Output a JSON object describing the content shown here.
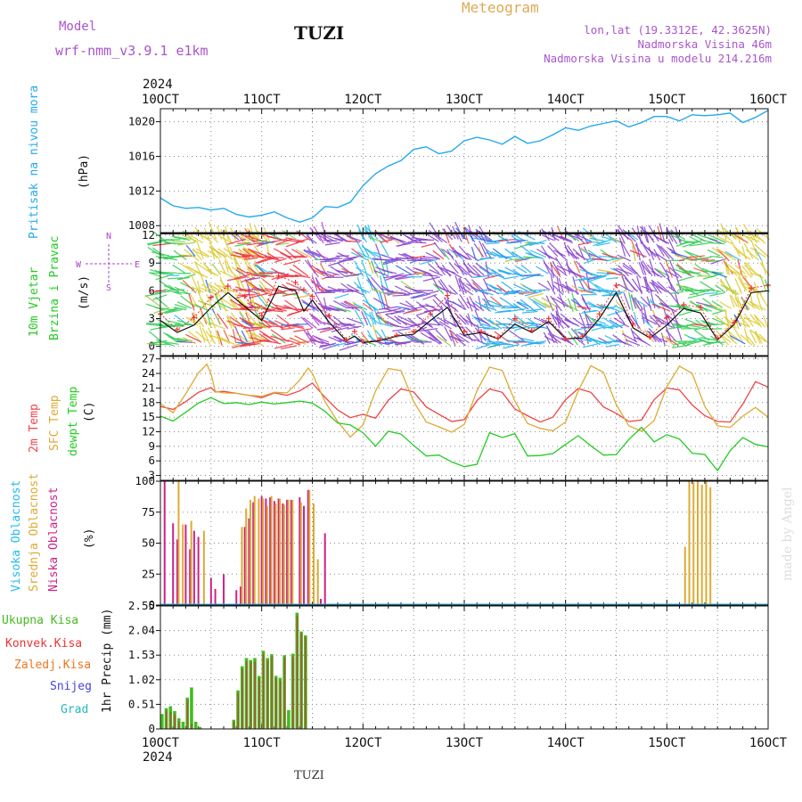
{
  "header": {
    "model_label": "Model",
    "model_name": "wrf-nmm_v3.9.1  e1km",
    "station": "TUZI",
    "product": "Meteogram",
    "lonlat": "lon,lat (19.3312E, 42.3625N)",
    "elevation": "Nadmorska Visina 46m",
    "model_elevation": "Nadmorska Visina u modelu 214.216m",
    "footer_station": "TUZI",
    "credit": "made by Angel",
    "year": "2024"
  },
  "time_axis": {
    "ticks": [
      "10OCT",
      "11OCT",
      "12OCT",
      "13OCT",
      "14OCT",
      "15OCT",
      "16OCT"
    ],
    "range_hours": [
      0,
      144
    ]
  },
  "colors": {
    "pressure": "#22aaee",
    "temp2m": "#ee4444",
    "sfc_temp": "#ddaa33",
    "dewpt": "#22cc22",
    "high_cloud": "#22bbee",
    "mid_cloud": "#ddaa33",
    "low_cloud": "#cc2288",
    "total_rain": "#44bb22",
    "conv_rain": "#ee3333",
    "freezing_rain": "#ee7722",
    "snow": "#4444dd",
    "hail": "#22bbbb",
    "wind_label": "#22cc22",
    "wind_dir": "#aa44cc"
  },
  "chart_data": [
    {
      "type": "line",
      "panel": "pressure",
      "ylabel": [
        "Pritisak na nivou mora",
        "(hPa)"
      ],
      "yticks": [
        1008,
        1012,
        1016,
        1020
      ],
      "ylim": [
        1007.2,
        1021.5
      ],
      "grid": true,
      "series": [
        {
          "color_key": "pressure",
          "x": [
            0,
            3,
            6,
            9,
            12,
            15,
            18,
            21,
            24,
            27,
            30,
            33,
            36,
            39,
            42,
            45,
            48,
            51,
            54,
            57,
            60,
            63,
            66,
            69,
            72,
            75,
            78,
            81,
            84,
            87,
            90,
            93,
            96,
            99,
            102,
            105,
            108,
            111,
            114,
            117,
            120,
            123,
            126,
            129,
            132,
            135,
            138,
            141,
            144
          ],
          "values": [
            1011.2,
            1010.3,
            1010.0,
            1010.1,
            1009.8,
            1010.0,
            1009.3,
            1009.0,
            1009.2,
            1009.6,
            1008.9,
            1008.4,
            1008.9,
            1010.2,
            1010.1,
            1010.7,
            1012.6,
            1014.0,
            1014.9,
            1015.5,
            1016.8,
            1017.1,
            1016.3,
            1016.6,
            1017.8,
            1018.2,
            1017.9,
            1017.4,
            1018.3,
            1017.5,
            1017.8,
            1018.5,
            1019.3,
            1019.0,
            1019.5,
            1019.8,
            1020.1,
            1019.4,
            1019.9,
            1020.6,
            1020.6,
            1020.1,
            1020.8,
            1020.7,
            1020.8,
            1021.0,
            1019.9,
            1020.5,
            1021.3
          ]
        }
      ]
    },
    {
      "type": "line",
      "panel": "wind",
      "ylabel": [
        "10m Vjetar",
        "Brzina i Pravac",
        "(m/s)"
      ],
      "compass": [
        "N",
        "S",
        "W",
        "E"
      ],
      "yticks": [
        0,
        3,
        6,
        9,
        12
      ],
      "ylim": [
        -1,
        12.2
      ],
      "grid": true,
      "series": [
        {
          "name": "speed",
          "x": [
            0,
            4,
            8,
            12,
            16,
            20,
            24,
            28,
            32,
            34,
            36,
            40,
            44,
            46,
            48,
            52,
            56,
            60,
            64,
            68,
            72,
            76,
            80,
            84,
            88,
            92,
            96,
            100,
            104,
            108,
            112,
            116,
            120,
            124,
            128,
            132,
            136,
            140,
            144
          ],
          "values": [
            2.8,
            1.5,
            2.3,
            4.2,
            5.8,
            4.3,
            2.8,
            6.5,
            6.0,
            3.8,
            5.0,
            2.6,
            0.6,
            1.1,
            0.4,
            0.6,
            1.1,
            1.3,
            2.8,
            4.2,
            1.2,
            1.5,
            0.8,
            2.4,
            1.5,
            2.7,
            0.8,
            0.9,
            3.0,
            5.8,
            2.0,
            0.9,
            2.3,
            4.1,
            3.6,
            0.7,
            2.4,
            5.8,
            6.0
          ]
        },
        {
          "name": "gust",
          "x": [
            0,
            4,
            8,
            12,
            16,
            20,
            24,
            28,
            32,
            34,
            36,
            40,
            44,
            46,
            48,
            52,
            56,
            60,
            64,
            68,
            72,
            76,
            80,
            84,
            88,
            92,
            96,
            100,
            104,
            108,
            112,
            116,
            120,
            124,
            128,
            132,
            136,
            140,
            144
          ],
          "values": [
            3.5,
            1.8,
            3.1,
            5.3,
            6.5,
            5.4,
            3.3,
            7.6,
            6.9,
            6.1,
            5.4,
            3.3,
            0.7,
            1.6,
            0.5,
            0.7,
            1.2,
            1.6,
            3.5,
            5.5,
            1.6,
            1.6,
            0.9,
            3.0,
            1.7,
            3.0,
            0.8,
            1.1,
            3.5,
            6.6,
            2.4,
            1.0,
            3.1,
            4.5,
            4.2,
            0.9,
            2.6,
            6.3,
            6.6
          ]
        }
      ]
    },
    {
      "type": "line",
      "panel": "temperature",
      "ylabel": [
        "2m Temp",
        "SFC Temp",
        "dewpt Temp",
        "(C)"
      ],
      "yticks": [
        3,
        6,
        9,
        12,
        15,
        18,
        21,
        24,
        27
      ],
      "ylim": [
        2,
        27.5
      ],
      "grid": true,
      "series": [
        {
          "name": "2m Temp",
          "color_key": "temp2m",
          "x": [
            0,
            3,
            6,
            9,
            12,
            13,
            15,
            18,
            21,
            24,
            27,
            30,
            33,
            36,
            39,
            42,
            45,
            48,
            51,
            54,
            57,
            60,
            63,
            66,
            69,
            72,
            75,
            78,
            81,
            84,
            87,
            90,
            93,
            96,
            99,
            102,
            105,
            108,
            111,
            114,
            117,
            120,
            123,
            126,
            129,
            132,
            135,
            138,
            141,
            144
          ],
          "values": [
            17.2,
            16.6,
            18.2,
            20.1,
            21.1,
            20.2,
            20.3,
            19.9,
            19.5,
            19.0,
            20.0,
            19.5,
            20.4,
            22.0,
            19.1,
            16.5,
            14.9,
            15.6,
            14.8,
            18.5,
            20.8,
            20.2,
            17.1,
            15.6,
            14.1,
            14.5,
            18.4,
            20.8,
            20.1,
            16.7,
            15.3,
            14.0,
            15.0,
            18.6,
            20.9,
            20.1,
            17.1,
            15.8,
            14.1,
            14.4,
            18.6,
            21.0,
            20.6,
            17.5,
            15.3,
            14.1,
            14.0,
            17.7,
            22.3,
            21.2
          ]
        },
        {
          "name": "SFC Temp",
          "color_key": "sfc_temp",
          "x": [
            0,
            3,
            6,
            9,
            11,
            12,
            13,
            15,
            18,
            21,
            24,
            27,
            30,
            33,
            35,
            36,
            39,
            42,
            45,
            48,
            51,
            54,
            57,
            60,
            63,
            66,
            69,
            72,
            75,
            78,
            81,
            84,
            87,
            90,
            93,
            96,
            99,
            102,
            105,
            108,
            111,
            114,
            117,
            120,
            123,
            126,
            129,
            132,
            135,
            138,
            141,
            144
          ],
          "values": [
            17.8,
            15.9,
            19.8,
            24.1,
            25.9,
            24.0,
            20.3,
            20.0,
            19.9,
            19.5,
            19.3,
            20.1,
            20.0,
            22.6,
            25.1,
            24.0,
            18.2,
            14.1,
            10.9,
            13.4,
            20.4,
            25.0,
            24.6,
            18.2,
            14.0,
            13.0,
            11.9,
            13.5,
            20.4,
            25.3,
            24.6,
            18.3,
            13.7,
            12.7,
            12.2,
            14.0,
            20.4,
            25.6,
            24.2,
            17.6,
            13.2,
            12.1,
            14.3,
            21.3,
            25.5,
            24.0,
            17.2,
            13.2,
            12.9,
            15.2,
            17.0,
            15.0
          ]
        },
        {
          "name": "dewpt Temp",
          "color_key": "dewpt",
          "x": [
            0,
            3,
            6,
            9,
            12,
            15,
            18,
            21,
            24,
            27,
            30,
            33,
            36,
            39,
            42,
            45,
            48,
            51,
            54,
            57,
            60,
            63,
            66,
            69,
            72,
            75,
            78,
            81,
            84,
            87,
            90,
            93,
            96,
            99,
            102,
            105,
            108,
            111,
            114,
            117,
            120,
            123,
            126,
            129,
            132,
            135,
            138,
            141,
            144
          ],
          "values": [
            15.2,
            14.2,
            16.0,
            17.9,
            19.0,
            17.8,
            18.0,
            17.6,
            18.1,
            17.7,
            18.0,
            18.3,
            17.9,
            16.2,
            13.8,
            13.4,
            11.8,
            9.0,
            12.1,
            11.5,
            9.2,
            7.0,
            7.2,
            5.8,
            4.8,
            5.3,
            11.8,
            10.8,
            11.6,
            7.0,
            7.1,
            7.5,
            9.4,
            11.2,
            9.1,
            7.2,
            7.3,
            10.4,
            12.9,
            9.9,
            11.4,
            10.5,
            7.6,
            7.3,
            4.0,
            8.1,
            10.8,
            9.4,
            8.9
          ]
        }
      ]
    },
    {
      "type": "bar",
      "panel": "clouds",
      "ylabel": [
        "Visoka Oblacnost",
        "Srednja Oblacnost",
        "Niska Oblacnost",
        "(%)"
      ],
      "yticks": [
        0,
        25,
        50,
        75,
        100
      ],
      "ylim": [
        0,
        100
      ],
      "grid": true,
      "series": [
        {
          "name": "Niska Oblacnost",
          "color_key": "low_cloud",
          "x": [
            1,
            3,
            4,
            6,
            7,
            8,
            9,
            12,
            13,
            15,
            18,
            19,
            20,
            21,
            22,
            24,
            25,
            26,
            27,
            28,
            29,
            30,
            31,
            33,
            34,
            35,
            38,
            39
          ],
          "values": [
            100,
            66,
            53,
            65,
            45,
            60,
            55,
            22,
            13,
            25,
            12,
            15,
            63,
            70,
            83,
            88,
            86,
            87,
            84,
            86,
            82,
            85,
            85,
            87,
            80,
            93,
            5,
            58
          ]
        },
        {
          "name": "Srednja Oblacnost",
          "color_key": "mid_cloud",
          "x": [
            4,
            5,
            7,
            10,
            19,
            20,
            21,
            22,
            23,
            24,
            25,
            26,
            27,
            28,
            29,
            30,
            31,
            33,
            35,
            36,
            37,
            124,
            125,
            126,
            127,
            128,
            129,
            130
          ],
          "values": [
            100,
            65,
            68,
            60,
            63,
            78,
            85,
            88,
            86,
            86,
            80,
            88,
            82,
            86,
            81,
            85,
            85,
            83,
            93,
            82,
            37,
            47,
            100,
            99,
            100,
            97,
            100,
            95
          ]
        },
        {
          "name": "Visoka Oblacnost",
          "color_key": "high_cloud",
          "x": [],
          "values": []
        }
      ]
    },
    {
      "type": "bar",
      "panel": "precip",
      "ylabel": [
        "1hr Precip (mm)"
      ],
      "legend": [
        "Ukupna Kisa",
        "Konvek.Kisa",
        "Zaledj.Kisa",
        "Snijeg",
        "Grad"
      ],
      "yticks": [
        0,
        0.51,
        1.02,
        1.53,
        2.04,
        2.55
      ],
      "ylim": [
        0,
        2.55
      ],
      "grid": true,
      "series": [
        {
          "name": "Ukupna Kisa",
          "color_key": "total_rain",
          "x": [
            0,
            1,
            2,
            3,
            4,
            5,
            6,
            7,
            8,
            9,
            17,
            18,
            19,
            20,
            21,
            22,
            23,
            24,
            25,
            26,
            27,
            28,
            29,
            30,
            31,
            32,
            33,
            34
          ],
          "values": [
            0.31,
            0.43,
            0.47,
            0.37,
            0.22,
            0.15,
            0.65,
            0.86,
            0.15,
            0.04,
            0.19,
            0.8,
            1.3,
            1.47,
            1.43,
            1.47,
            1.1,
            1.62,
            1.47,
            1.55,
            1.1,
            1.06,
            1.53,
            0.39,
            1.56,
            2.41,
            2.02,
            1.94
          ]
        },
        {
          "name": "Konvek.Kisa",
          "color_key": "conv_rain",
          "x": [
            1,
            2,
            3,
            4,
            6,
            7,
            17,
            18,
            19,
            20,
            21,
            22,
            23,
            24,
            25,
            26,
            27,
            28,
            29,
            31,
            32,
            33,
            34
          ],
          "values": [
            0.38,
            0.35,
            0.3,
            0.15,
            0.6,
            0.1,
            0.15,
            0.75,
            1.25,
            1.4,
            1.38,
            1.4,
            1.05,
            1.55,
            1.42,
            1.5,
            1.05,
            1.0,
            1.48,
            1.5,
            2.35,
            1.98,
            1.9
          ]
        }
      ]
    }
  ]
}
